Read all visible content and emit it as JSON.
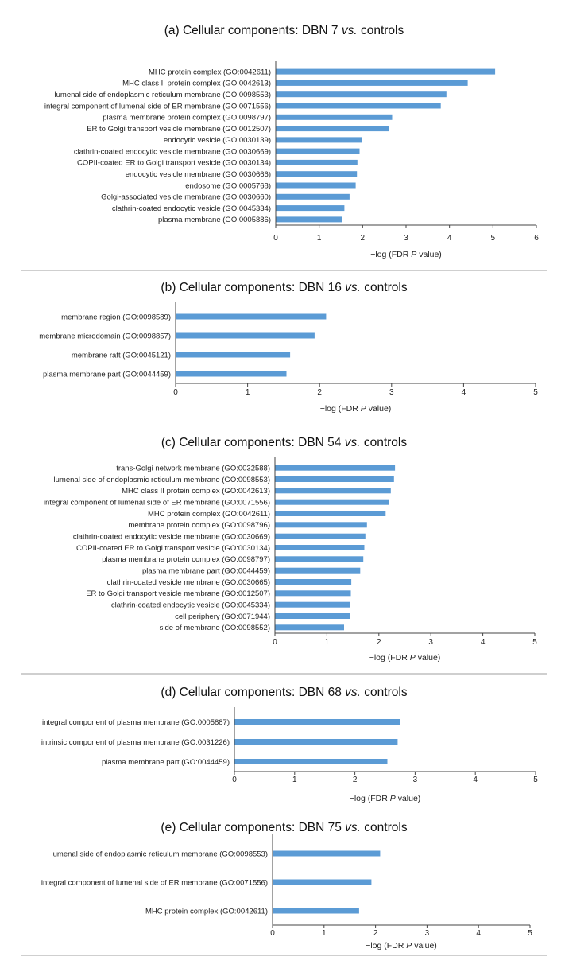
{
  "bar_color": "#5B9BD5",
  "xlabel_parts": [
    "−log (FDR ",
    "P",
    " value)"
  ],
  "chart_data": [
    {
      "type": "bar",
      "orientation": "horizontal",
      "title_parts": [
        "(a) Cellular components: DBN 7 ",
        "vs.",
        " controls"
      ],
      "xlim": [
        0,
        6
      ],
      "ticks": [
        "0",
        "1",
        "2",
        "3",
        "4",
        "5",
        "6"
      ],
      "categories": [
        "MHC protein complex (GO:0042611)",
        "MHC class II protein complex (GO:0042613)",
        "lumenal side of endoplasmic reticulum membrane (GO:0098553)",
        "integral component of lumenal side of ER membrane (GO:0071556)",
        "plasma membrane protein complex (GO:0098797)",
        "ER to Golgi transport vesicle membrane (GO:0012507)",
        "endocytic vesicle (GO:0030139)",
        "clathrin-coated endocytic vesicle membrane (GO:0030669)",
        "COPII-coated ER to Golgi transport vesicle (GO:0030134)",
        "endocytic vesicle membrane (GO:0030666)",
        "endosome (GO:0005768)",
        "Golgi-associated vesicle membrane (GO:0030660)",
        "clathrin-coated endocytic vesicle (GO:0045334)",
        "plasma membrane (GO:0005886)"
      ],
      "values": [
        5.05,
        4.42,
        3.93,
        3.8,
        2.68,
        2.6,
        1.99,
        1.93,
        1.88,
        1.87,
        1.84,
        1.7,
        1.58,
        1.53
      ]
    },
    {
      "type": "bar",
      "orientation": "horizontal",
      "title_parts": [
        "(b) Cellular components: DBN 16 ",
        "vs.",
        " controls"
      ],
      "xlim": [
        0,
        5
      ],
      "ticks": [
        "0",
        "1",
        "2",
        "3",
        "4",
        "5"
      ],
      "categories": [
        "membrane region (GO:0098589)",
        "membrane microdomain (GO:0098857)",
        "membrane raft (GO:0045121)",
        "plasma membrane part (GO:0044459)"
      ],
      "values": [
        2.09,
        1.93,
        1.59,
        1.54
      ]
    },
    {
      "type": "bar",
      "orientation": "horizontal",
      "title_parts": [
        "(c) Cellular components: DBN 54 ",
        "vs.",
        " controls"
      ],
      "xlim": [
        0,
        5
      ],
      "ticks": [
        "0",
        "1",
        "2",
        "3",
        "4",
        "5"
      ],
      "categories": [
        "trans-Golgi network membrane (GO:0032588)",
        "lumenal side of endoplasmic reticulum membrane (GO:0098553)",
        "MHC class II protein complex (GO:0042613)",
        "integral component of lumenal side of ER membrane (GO:0071556)",
        "MHC protein complex (GO:0042611)",
        "membrane protein complex (GO:0098796)",
        "clathrin-coated endocytic vesicle membrane (GO:0030669)",
        "COPII-coated ER to Golgi transport vesicle (GO:0030134)",
        "plasma membrane protein complex (GO:0098797)",
        "plasma membrane part (GO:0044459)",
        "clathrin-coated vesicle membrane (GO:0030665)",
        "ER to Golgi transport vesicle membrane (GO:0012507)",
        "clathrin-coated endocytic vesicle (GO:0045334)",
        "cell periphery (GO:0071944)",
        "side of membrane (GO:0098552)"
      ],
      "values": [
        2.31,
        2.29,
        2.23,
        2.2,
        2.13,
        1.77,
        1.74,
        1.72,
        1.7,
        1.64,
        1.47,
        1.46,
        1.45,
        1.44,
        1.33
      ]
    },
    {
      "type": "bar",
      "orientation": "horizontal",
      "title_parts": [
        "(d) Cellular components: DBN 68 ",
        "vs.",
        " controls"
      ],
      "xlim": [
        0,
        5
      ],
      "ticks": [
        "0",
        "1",
        "2",
        "3",
        "4",
        "5"
      ],
      "categories": [
        "integral component of plasma membrane (GO:0005887)",
        "intrinsic component of plasma membrane (GO:0031226)",
        "plasma membrane part (GO:0044459)"
      ],
      "values": [
        2.75,
        2.71,
        2.54
      ]
    },
    {
      "type": "bar",
      "orientation": "horizontal",
      "title_parts": [
        "(e) Cellular components: DBN 75 ",
        "vs.",
        " controls"
      ],
      "xlim": [
        0,
        5
      ],
      "ticks": [
        "0",
        "1",
        "2",
        "3",
        "4",
        "5"
      ],
      "categories": [
        "lumenal side of endoplasmic reticulum membrane (GO:0098553)",
        "integral component of lumenal side of ER membrane (GO:0071556)",
        "MHC protein complex (GO:0042611)"
      ],
      "values": [
        2.09,
        1.92,
        1.68
      ]
    }
  ]
}
